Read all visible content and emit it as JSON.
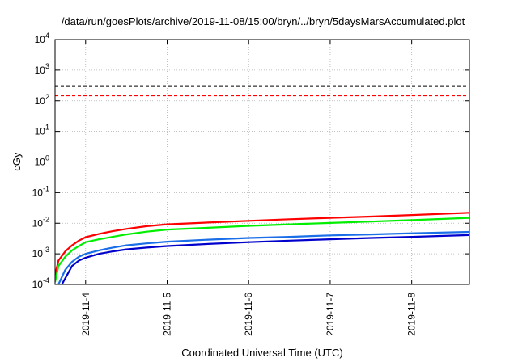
{
  "chart_data": {
    "type": "line",
    "title": "/data/run/goesPlots/archive/2019-11-08/15:00/bryn/../bryn/5daysMarsAccumulated.plot",
    "xlabel": "Coordinated Universal Time (UTC)",
    "ylabel": "cGy",
    "x_scale": "time",
    "x_range": [
      "2019-11-03T15:00",
      "2019-11-08T17:00"
    ],
    "y_scale": "log",
    "ylim": [
      0.0001,
      10000
    ],
    "grid": true,
    "y_tick_labels": [
      {
        "base": "10",
        "exp": "-4"
      },
      {
        "base": "10",
        "exp": "-3"
      },
      {
        "base": "10",
        "exp": "-2"
      },
      {
        "base": "10",
        "exp": "-1"
      },
      {
        "base": "10",
        "exp": "0"
      },
      {
        "base": "10",
        "exp": "1"
      },
      {
        "base": "10",
        "exp": "2"
      },
      {
        "base": "10",
        "exp": "3"
      },
      {
        "base": "10",
        "exp": "4"
      }
    ],
    "y_tick_values": [
      0.0001,
      0.001,
      0.01,
      0.1,
      1,
      10,
      100,
      1000,
      10000
    ],
    "x_tick_labels": [
      "2019-11-4",
      "2019-11-5",
      "2019-11-6",
      "2019-11-7",
      "2019-11-8"
    ],
    "x_tick_values": [
      "2019-11-04T00:00",
      "2019-11-05T00:00",
      "2019-11-06T00:00",
      "2019-11-07T00:00",
      "2019-11-08T00:00"
    ],
    "reference_lines": [
      {
        "value": 300,
        "color": "#000000"
      },
      {
        "value": 150,
        "color": "#ff0000"
      }
    ],
    "series": [
      {
        "color": "#ff0000",
        "x": [
          "2019-11-03T15:00",
          "2019-11-03T16:00",
          "2019-11-03T18:00",
          "2019-11-03T20:00",
          "2019-11-03T22:00",
          "2019-11-04T00:00",
          "2019-11-04T04:00",
          "2019-11-04T08:00",
          "2019-11-04T12:00",
          "2019-11-04T18:00",
          "2019-11-05T00:00",
          "2019-11-05T12:00",
          "2019-11-06T00:00",
          "2019-11-06T12:00",
          "2019-11-07T00:00",
          "2019-11-07T12:00",
          "2019-11-08T00:00",
          "2019-11-08T17:00"
        ],
        "y": [
          0.0002,
          0.0006,
          0.0012,
          0.0019,
          0.0027,
          0.0035,
          0.0045,
          0.0055,
          0.0065,
          0.008,
          0.0092,
          0.0105,
          0.012,
          0.0135,
          0.015,
          0.0165,
          0.0185,
          0.022
        ]
      },
      {
        "color": "#00ee00",
        "x": [
          "2019-11-03T15:00",
          "2019-11-03T16:00",
          "2019-11-03T18:00",
          "2019-11-03T20:00",
          "2019-11-03T22:00",
          "2019-11-04T00:00",
          "2019-11-04T04:00",
          "2019-11-04T08:00",
          "2019-11-04T12:00",
          "2019-11-04T18:00",
          "2019-11-05T00:00",
          "2019-11-05T12:00",
          "2019-11-06T00:00",
          "2019-11-06T12:00",
          "2019-11-07T00:00",
          "2019-11-07T12:00",
          "2019-11-08T00:00",
          "2019-11-08T17:00"
        ],
        "y": [
          0.00012,
          0.0004,
          0.0008,
          0.0013,
          0.0018,
          0.0024,
          0.003,
          0.0036,
          0.0043,
          0.0053,
          0.0062,
          0.0071,
          0.0082,
          0.0092,
          0.0102,
          0.0113,
          0.0126,
          0.015
        ]
      },
      {
        "color": "#1a6ee8",
        "x": [
          "2019-11-03T16:00",
          "2019-11-03T18:00",
          "2019-11-03T20:00",
          "2019-11-03T22:00",
          "2019-11-04T00:00",
          "2019-11-04T04:00",
          "2019-11-04T08:00",
          "2019-11-04T12:00",
          "2019-11-04T18:00",
          "2019-11-05T00:00",
          "2019-11-05T12:00",
          "2019-11-06T00:00",
          "2019-11-06T12:00",
          "2019-11-07T00:00",
          "2019-11-07T12:00",
          "2019-11-08T00:00",
          "2019-11-08T17:00"
        ],
        "y": [
          0.0001,
          0.0003,
          0.00055,
          0.0008,
          0.001,
          0.0013,
          0.0016,
          0.0019,
          0.0022,
          0.0025,
          0.0029,
          0.0033,
          0.0036,
          0.004,
          0.0043,
          0.0047,
          0.0052
        ]
      },
      {
        "color": "#0000cc",
        "x": [
          "2019-11-03T17:00",
          "2019-11-03:20:00",
          "2019-11-03T22:00",
          "2019-11-04T00:00",
          "2019-11-04T04:00",
          "2019-11-04T08:00",
          "2019-11-04T12:00",
          "2019-11-04T18:00",
          "2019-11-05T00:00",
          "2019-11-05T12:00",
          "2019-11-06T00:00",
          "2019-11-06T12:00",
          "2019-11-07T00:00",
          "2019-11-07T12:00",
          "2019-11-08T00:00",
          "2019-11-08T17:00"
        ],
        "y": [
          0.0001,
          0.0004,
          0.0006,
          0.00075,
          0.001,
          0.0012,
          0.0014,
          0.0016,
          0.0018,
          0.0021,
          0.0024,
          0.0027,
          0.003,
          0.0033,
          0.0036,
          0.0041
        ]
      }
    ]
  }
}
